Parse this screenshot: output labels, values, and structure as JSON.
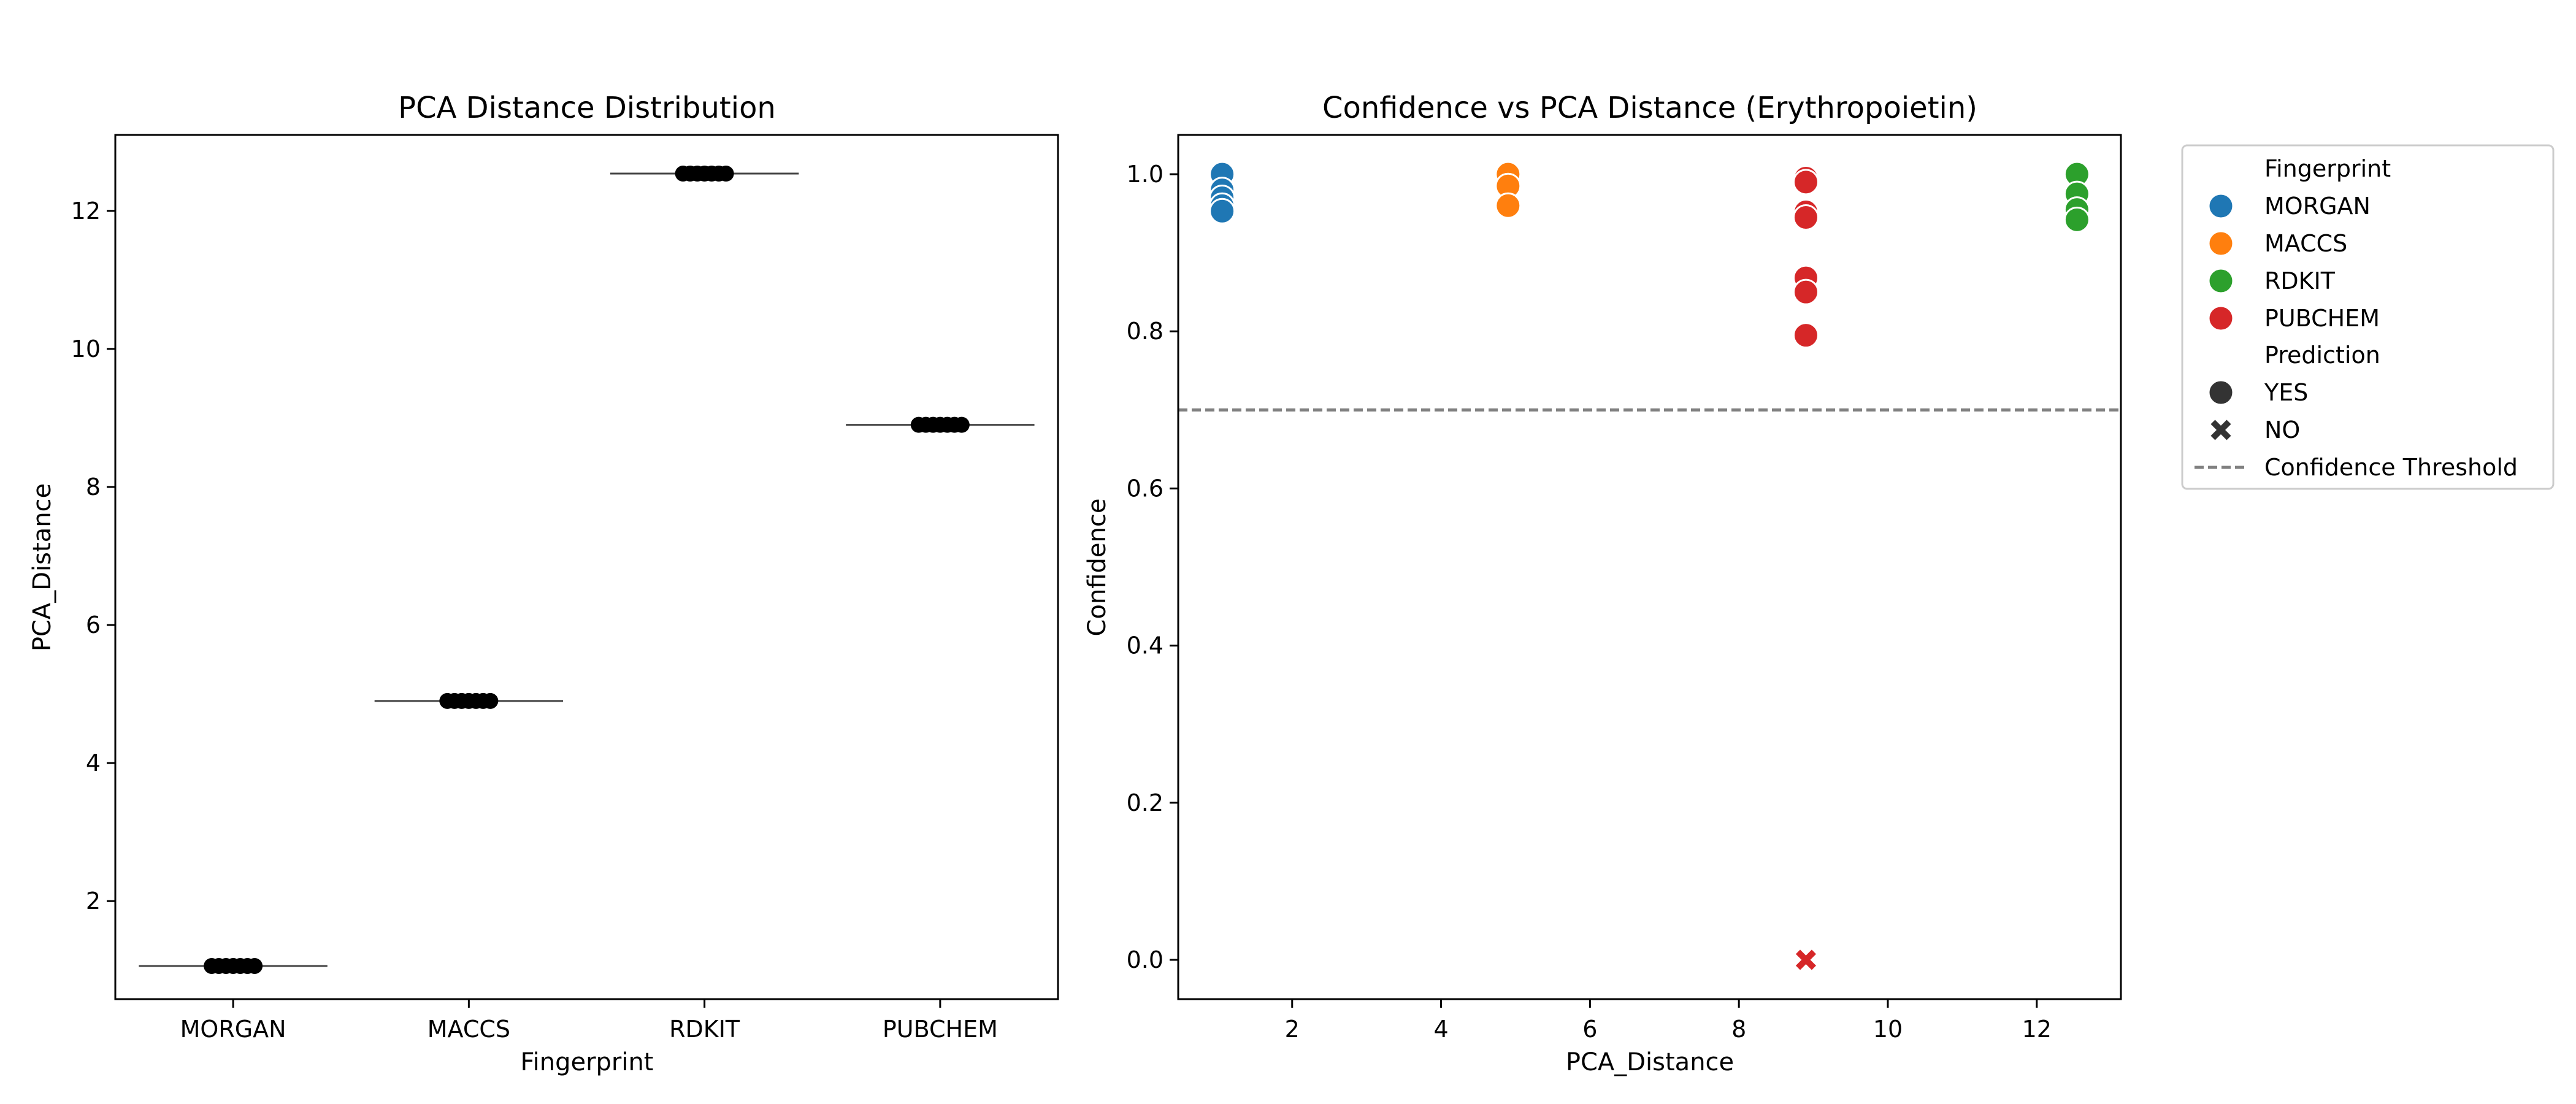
{
  "chart_data": [
    {
      "type": "strip",
      "title": "PCA Distance Distribution",
      "xlabel": "Fingerprint",
      "ylabel": "PCA_Distance",
      "categories": [
        "MORGAN",
        "MACCS",
        "RDKIT",
        "PUBCHEM"
      ],
      "ylim": [
        0.58,
        13.1
      ],
      "yticks": [
        2,
        4,
        6,
        8,
        10,
        12
      ],
      "median_lines": [
        1.06,
        4.9,
        12.54,
        8.9
      ],
      "points": {
        "MORGAN": [
          1.06,
          1.06,
          1.06,
          1.06,
          1.06,
          1.06,
          1.06
        ],
        "MACCS": [
          4.9,
          4.9,
          4.9,
          4.9,
          4.9,
          4.9,
          4.9
        ],
        "RDKIT": [
          12.54,
          12.54,
          12.54,
          12.54,
          12.54,
          12.54,
          12.54
        ],
        "PUBCHEM": [
          8.9,
          8.9,
          8.9,
          8.9,
          8.9,
          8.9,
          8.9
        ]
      },
      "point_color": "#000000",
      "grid": false
    },
    {
      "type": "scatter",
      "title": "Confidence vs PCA Distance (Erythropoietin)",
      "xlabel": "PCA_Distance",
      "ylabel": "Confidence",
      "xlim": [
        0.47,
        13.13
      ],
      "ylim": [
        -0.05,
        1.05
      ],
      "xticks": [
        2,
        4,
        6,
        8,
        10,
        12
      ],
      "yticks": [
        0.0,
        0.2,
        0.4,
        0.6,
        0.8,
        1.0
      ],
      "yticklabels": [
        "0.0",
        "0.2",
        "0.4",
        "0.6",
        "0.8",
        "1.0"
      ],
      "grid": false,
      "threshold": {
        "y": 0.7,
        "label": "Confidence Threshold",
        "color": "#808080"
      },
      "series": [
        {
          "name": "MORGAN",
          "color": "#1f77b4",
          "x": 1.06,
          "points": [
            {
              "y": 1.0,
              "pred": "YES"
            },
            {
              "y": 0.98,
              "pred": "YES"
            },
            {
              "y": 0.97,
              "pred": "YES"
            },
            {
              "y": 0.96,
              "pred": "YES"
            },
            {
              "y": 0.953,
              "pred": "YES"
            }
          ]
        },
        {
          "name": "MACCS",
          "color": "#ff7f0e",
          "x": 4.9,
          "points": [
            {
              "y": 1.0,
              "pred": "YES"
            },
            {
              "y": 0.985,
              "pred": "YES"
            },
            {
              "y": 0.96,
              "pred": "YES"
            }
          ]
        },
        {
          "name": "RDKIT",
          "color": "#2ca02c",
          "x": 12.54,
          "points": [
            {
              "y": 1.0,
              "pred": "YES"
            },
            {
              "y": 0.975,
              "pred": "YES"
            },
            {
              "y": 0.955,
              "pred": "YES"
            },
            {
              "y": 0.942,
              "pred": "YES"
            }
          ]
        },
        {
          "name": "PUBCHEM",
          "color": "#d62728",
          "x": 8.9,
          "points": [
            {
              "y": 0.995,
              "pred": "YES"
            },
            {
              "y": 0.99,
              "pred": "YES"
            },
            {
              "y": 0.952,
              "pred": "YES"
            },
            {
              "y": 0.945,
              "pred": "YES"
            },
            {
              "y": 0.868,
              "pred": "YES"
            },
            {
              "y": 0.85,
              "pred": "YES"
            },
            {
              "y": 0.795,
              "pred": "YES"
            },
            {
              "y": 0.0,
              "pred": "NO"
            }
          ]
        }
      ],
      "legend": {
        "placement": "outside-right",
        "hue_title": "Fingerprint",
        "hue_entries": [
          "MORGAN",
          "MACCS",
          "RDKIT",
          "PUBCHEM"
        ],
        "style_title": "Prediction",
        "style_entries": [
          {
            "label": "YES",
            "marker": "circle"
          },
          {
            "label": "NO",
            "marker": "x"
          }
        ],
        "line_entry": "Confidence Threshold",
        "marker_color": "#333333"
      }
    }
  ]
}
